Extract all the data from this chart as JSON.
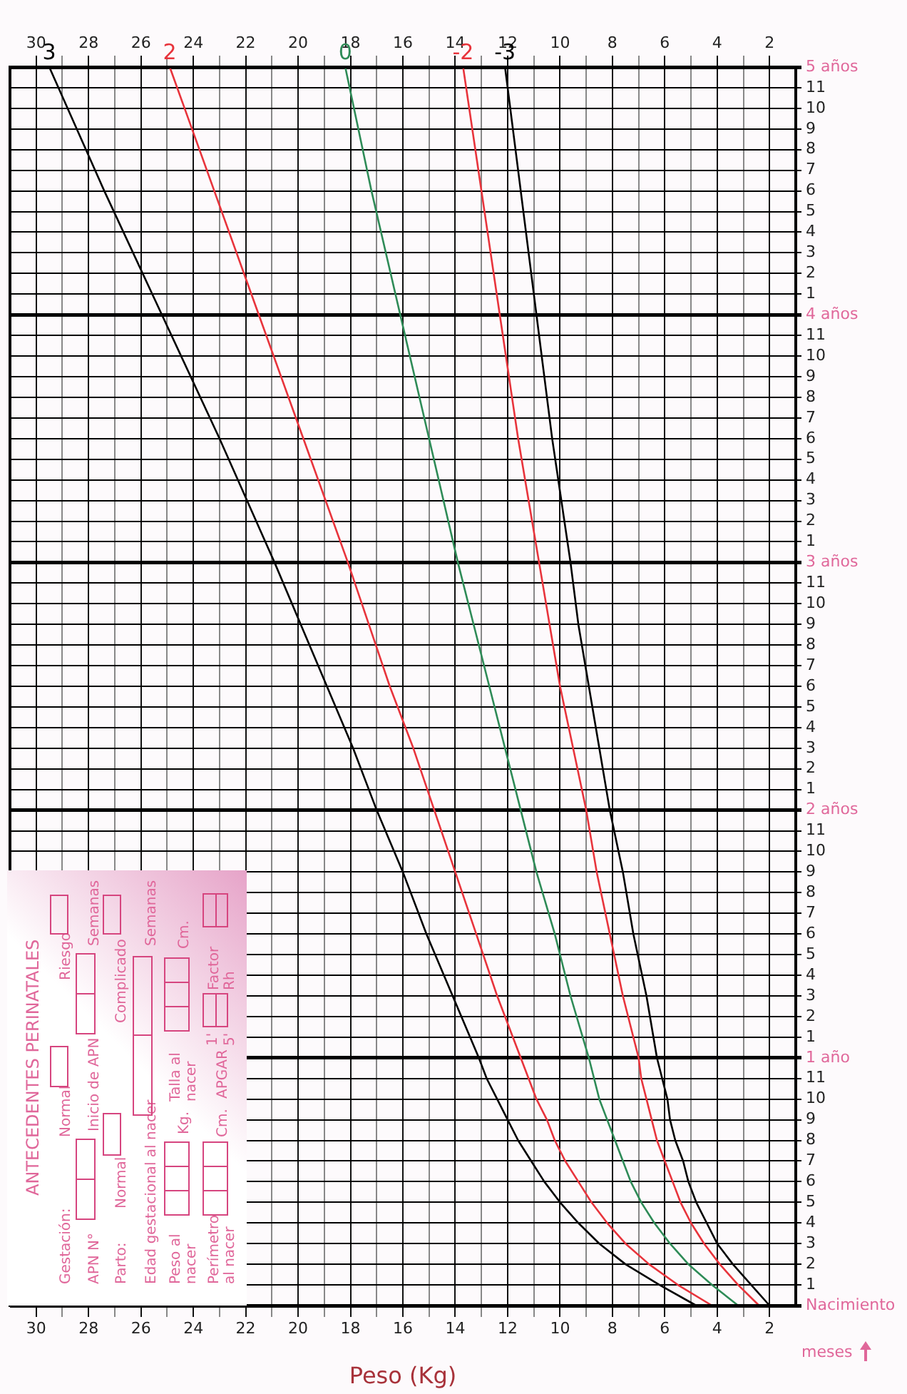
{
  "chart_data": {
    "type": "line",
    "orientation": "horizontal",
    "xlabel": "Peso (Kg)",
    "categories": [
      "5 años",
      "11",
      "10",
      "9",
      "8",
      "7",
      "6",
      "5",
      "4",
      "3",
      "2",
      "1",
      "4 años",
      "11",
      "10",
      "9",
      "8",
      "7",
      "6",
      "5",
      "4",
      "3",
      "2",
      "1",
      "3 años",
      "11",
      "10",
      "9",
      "8",
      "7",
      "6",
      "5",
      "4",
      "3",
      "2",
      "1",
      "2 años",
      "11",
      "10",
      "9",
      "8",
      "7",
      "6",
      "5",
      "4",
      "3",
      "2",
      "1",
      "1 año",
      "11",
      "10",
      "9",
      "8",
      "7",
      "6",
      "5",
      "4",
      "3",
      "2",
      "1",
      "Nacimiento"
    ],
    "series": [
      {
        "name": "3",
        "color": "#000000",
        "values": [
          29.5,
          null,
          null,
          null,
          null,
          null,
          27.4,
          null,
          null,
          null,
          null,
          null,
          25.2,
          null,
          null,
          null,
          null,
          null,
          23.0,
          null,
          null,
          null,
          null,
          null,
          20.9,
          null,
          null,
          19.9,
          null,
          null,
          18.9,
          null,
          null,
          17.9,
          null,
          null,
          17.0,
          null,
          null,
          16.0,
          null,
          null,
          15.1,
          null,
          null,
          14.1,
          null,
          null,
          13.1,
          12.8,
          12.4,
          12.0,
          11.6,
          11.1,
          10.6,
          10.0,
          9.3,
          8.5,
          7.5,
          6.2,
          4.8
        ]
      },
      {
        "name": "2",
        "color": "#e8343c",
        "values": [
          24.9,
          null,
          null,
          null,
          null,
          null,
          23.2,
          null,
          null,
          null,
          null,
          null,
          21.5,
          null,
          null,
          null,
          null,
          null,
          19.8,
          null,
          null,
          null,
          null,
          null,
          18.1,
          null,
          null,
          17.3,
          null,
          null,
          16.5,
          null,
          null,
          15.6,
          null,
          null,
          14.8,
          null,
          null,
          14.0,
          null,
          null,
          13.2,
          null,
          null,
          12.4,
          null,
          null,
          11.5,
          11.2,
          10.9,
          10.5,
          10.2,
          9.8,
          9.3,
          8.8,
          8.2,
          7.5,
          6.6,
          5.5,
          4.2
        ]
      },
      {
        "name": "0",
        "color": "#2e8b57",
        "values": [
          18.2,
          null,
          null,
          null,
          null,
          null,
          17.2,
          null,
          null,
          null,
          null,
          null,
          16.1,
          null,
          null,
          null,
          null,
          null,
          15.0,
          null,
          null,
          null,
          null,
          null,
          13.9,
          null,
          null,
          13.3,
          null,
          null,
          12.7,
          null,
          null,
          12.1,
          null,
          null,
          11.5,
          null,
          null,
          10.9,
          null,
          null,
          10.2,
          null,
          null,
          9.6,
          null,
          null,
          8.9,
          8.7,
          8.5,
          8.2,
          7.9,
          7.6,
          7.3,
          6.9,
          6.4,
          5.8,
          5.1,
          4.2,
          3.2
        ]
      },
      {
        "name": "-2",
        "color": "#e8343c",
        "values": [
          13.7,
          null,
          null,
          null,
          null,
          null,
          13.0,
          null,
          null,
          null,
          null,
          null,
          12.3,
          null,
          null,
          null,
          null,
          null,
          11.6,
          null,
          null,
          null,
          null,
          null,
          10.8,
          null,
          null,
          10.4,
          null,
          null,
          10.0,
          null,
          null,
          9.5,
          null,
          null,
          9.0,
          null,
          null,
          8.6,
          null,
          null,
          8.1,
          null,
          null,
          7.6,
          null,
          null,
          7.0,
          6.9,
          6.7,
          6.5,
          6.3,
          6.0,
          5.7,
          5.4,
          5.0,
          4.5,
          3.9,
          3.2,
          2.4
        ]
      },
      {
        "name": "-3",
        "color": "#000000",
        "values": [
          12.1,
          null,
          null,
          null,
          null,
          null,
          11.5,
          null,
          null,
          null,
          null,
          null,
          10.9,
          null,
          null,
          null,
          null,
          null,
          10.3,
          null,
          null,
          null,
          null,
          null,
          9.6,
          null,
          null,
          9.3,
          null,
          null,
          8.9,
          null,
          null,
          8.5,
          null,
          null,
          8.1,
          null,
          null,
          7.6,
          null,
          null,
          7.2,
          null,
          null,
          6.7,
          null,
          null,
          6.3,
          6.1,
          5.9,
          5.8,
          5.6,
          5.3,
          5.1,
          4.8,
          4.4,
          4.0,
          3.4,
          2.7,
          2.0
        ]
      }
    ],
    "xlim": [
      31,
      1
    ],
    "xticks": [
      30,
      {
        "value": 29,
        "label": null
      },
      28,
      {
        "value": 27,
        "label": null
      },
      26,
      {
        "value": 25,
        "label": null
      },
      24,
      {
        "value": 23,
        "label": null
      },
      22,
      {
        "value": 21,
        "label": null
      },
      20,
      {
        "value": 19,
        "label": null
      },
      18,
      {
        "value": 17,
        "label": null
      },
      16,
      {
        "value": 15,
        "label": null
      },
      14,
      {
        "value": 13,
        "label": null
      },
      12,
      {
        "value": 11,
        "label": null
      },
      10,
      {
        "value": 9,
        "label": null
      },
      8,
      {
        "value": 7,
        "label": null
      },
      6,
      {
        "value": 5,
        "label": null
      },
      4,
      {
        "value": 3,
        "label": null
      },
      2
    ],
    "x2lim": [
      31,
      1
    ],
    "x2ticks": [
      30,
      {
        "value": 29,
        "label": null
      },
      28,
      {
        "value": 27,
        "label": null
      },
      26,
      {
        "value": 25,
        "label": null
      },
      24,
      {
        "value": 23,
        "label": null
      },
      22,
      {
        "value": 21,
        "label": null
      },
      20,
      {
        "value": 19,
        "label": null
      },
      18,
      {
        "value": 17,
        "label": null
      },
      16,
      {
        "value": 15,
        "label": null
      },
      14,
      {
        "value": 13,
        "label": null
      },
      12,
      {
        "value": 11,
        "label": null
      },
      10,
      {
        "value": 9,
        "label": null
      },
      8,
      {
        "value": 7,
        "label": null
      },
      6,
      {
        "value": 5,
        "label": null
      },
      4,
      {
        "value": 3,
        "label": null
      },
      2
    ],
    "grid": true,
    "marker": "none",
    "line_style": "solid",
    "annotations": [
      "ANTECEDENTES PERINATALES",
      "Gestación:",
      "Normal",
      "Riesgo",
      "APN N°",
      "Inicio de APN",
      "Semanas",
      "Parto:",
      "Normal",
      "Complicado",
      "Edad gestacional al nacer",
      "Semanas",
      "Peso al nacer",
      "Kg.",
      "Talla al nacer",
      "Cm.",
      "Perímetro al nacer",
      "Cm.",
      "APGAR",
      "1'",
      "5'",
      "Factor Rh",
      "meses"
    ]
  }
}
